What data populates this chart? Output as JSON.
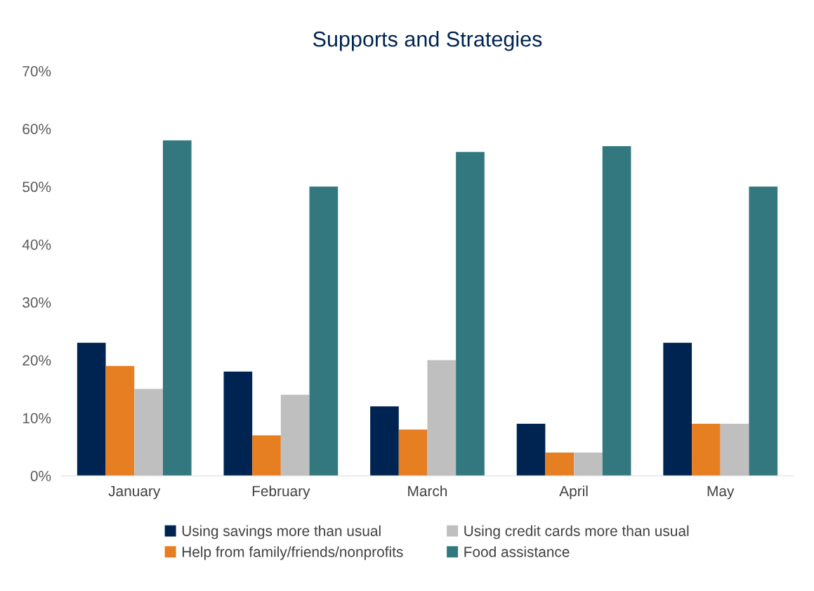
{
  "chart_data": {
    "type": "bar",
    "title": "Supports and Strategies",
    "categories": [
      "January",
      "February",
      "March",
      "April",
      "May"
    ],
    "series": [
      {
        "name": "Using savings more than usual",
        "color": "#002451",
        "values": [
          23,
          18,
          12,
          9,
          23
        ]
      },
      {
        "name": "Help from family/friends/nonprofits",
        "color": "#e67e22",
        "values": [
          19,
          7,
          8,
          4,
          9
        ]
      },
      {
        "name": "Using credit cards more than usual",
        "color": "#bfbfbf",
        "values": [
          15,
          14,
          20,
          4,
          9
        ]
      },
      {
        "name": "Food assistance",
        "color": "#33787f",
        "values": [
          58,
          50,
          56,
          57,
          50
        ]
      }
    ],
    "ylim": [
      0,
      70
    ],
    "yticks": [
      {
        "value": 0,
        "label": "0%"
      },
      {
        "value": 10,
        "label": "10%"
      },
      {
        "value": 20,
        "label": "20%"
      },
      {
        "value": 30,
        "label": "30%"
      },
      {
        "value": 40,
        "label": "40%"
      },
      {
        "value": 50,
        "label": "50%"
      },
      {
        "value": 60,
        "label": "60%"
      },
      {
        "value": 70,
        "label": "70%"
      }
    ],
    "grid": false,
    "legend": "bottom"
  }
}
